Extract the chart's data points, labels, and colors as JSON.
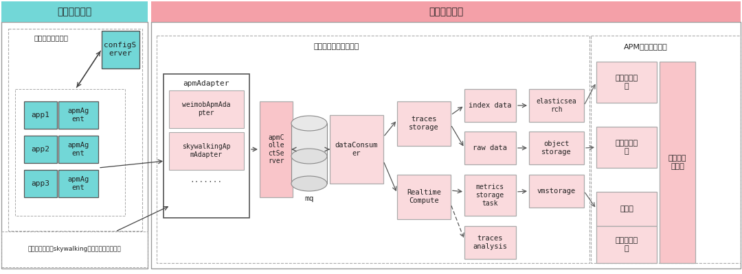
{
  "bg_color": "#ffffff",
  "cyan_color": "#72d7d7",
  "pink_header": "#f4a0a8",
  "pink_light": "#fadadd",
  "pink_fill": "#f9c5c9",
  "section_front_label": "前台链路服务",
  "section_back_label": "后台链路服务",
  "section_apm_label": "APM平台透出功能",
  "subsection_front_label": "微盟前台链路服务",
  "subsection_data_label": "数据收集，存储，分析",
  "footer_label": "其他链路组件（skywalking，微盟前端链路等）"
}
